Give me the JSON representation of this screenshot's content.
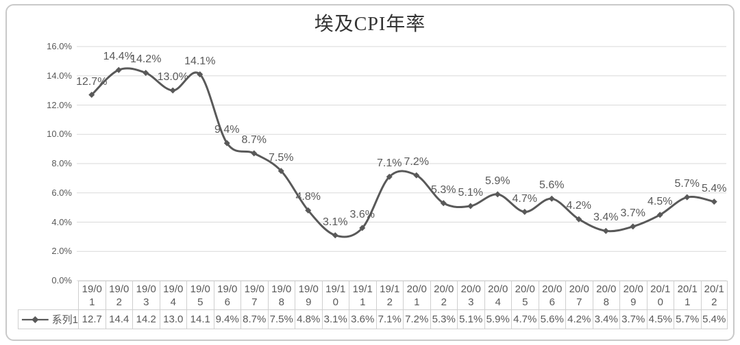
{
  "chart_data": {
    "type": "line",
    "title": "埃及CPI年率",
    "categories": [
      "19/01",
      "19/02",
      "19/03",
      "19/04",
      "19/05",
      "19/06",
      "19/07",
      "19/08",
      "19/09",
      "19/10",
      "19/11",
      "19/12",
      "20/01",
      "20/02",
      "20/03",
      "20/04",
      "20/05",
      "20/06",
      "20/07",
      "20/08",
      "20/09",
      "20/10",
      "20/11",
      "20/12"
    ],
    "series": [
      {
        "name": "系列1",
        "values": [
          12.7,
          14.4,
          14.2,
          13.0,
          14.1,
          9.4,
          8.7,
          7.5,
          4.8,
          3.1,
          3.6,
          7.1,
          7.2,
          5.3,
          5.1,
          5.9,
          4.7,
          5.6,
          4.2,
          3.4,
          3.7,
          4.5,
          5.7,
          5.4
        ]
      }
    ],
    "data_labels": [
      "12.7%",
      "14.4%",
      "14.2%",
      "13.0%",
      "14.1%",
      "9.4%",
      "8.7%",
      "7.5%",
      "4.8%",
      "3.1%",
      "3.6%",
      "7.1%",
      "7.2%",
      "5.3%",
      "5.1%",
      "5.9%",
      "4.7%",
      "5.6%",
      "4.2%",
      "3.4%",
      "3.7%",
      "4.5%",
      "5.7%",
      "5.4%"
    ],
    "xlabel": "",
    "ylabel": "",
    "ylim": [
      0,
      16
    ],
    "y_tick_step": 2,
    "y_ticks": [
      "0.0%",
      "2.0%",
      "4.0%",
      "6.0%",
      "8.0%",
      "10.0%",
      "12.0%",
      "14.0%",
      "16.0%"
    ],
    "grid": true,
    "smooth": true,
    "marker": "diamond",
    "legend_position": "bottom-left-data-table",
    "colors": {
      "line": "#595959",
      "marker": "#595959",
      "gridline": "#d9d9d9",
      "axis_text": "#595959",
      "data_label_text": "#595959",
      "table_border": "#cfcfcf",
      "frame_border": "#c9c9c9",
      "title_text": "#333333",
      "background": "#ffffff"
    }
  },
  "data_table": {
    "legend_label": "系列1",
    "columns": [
      "19/01",
      "19/02",
      "19/03",
      "19/04",
      "19/05",
      "19/06",
      "19/07",
      "19/08",
      "19/09",
      "19/10",
      "19/11",
      "19/12",
      "20/01",
      "20/02",
      "20/03",
      "20/04",
      "20/05",
      "20/06",
      "20/07",
      "20/08",
      "20/09",
      "20/10",
      "20/11",
      "20/12"
    ],
    "values_display": [
      "12.7",
      "14.4",
      "14.2",
      "13.0",
      "14.1",
      "9.4%",
      "8.7%",
      "7.5%",
      "4.8%",
      "3.1%",
      "3.6%",
      "7.1%",
      "7.2%",
      "5.3%",
      "5.1%",
      "5.9%",
      "4.7%",
      "5.6%",
      "4.2%",
      "3.4%",
      "3.7%",
      "4.5%",
      "5.7%",
      "5.4%"
    ]
  }
}
